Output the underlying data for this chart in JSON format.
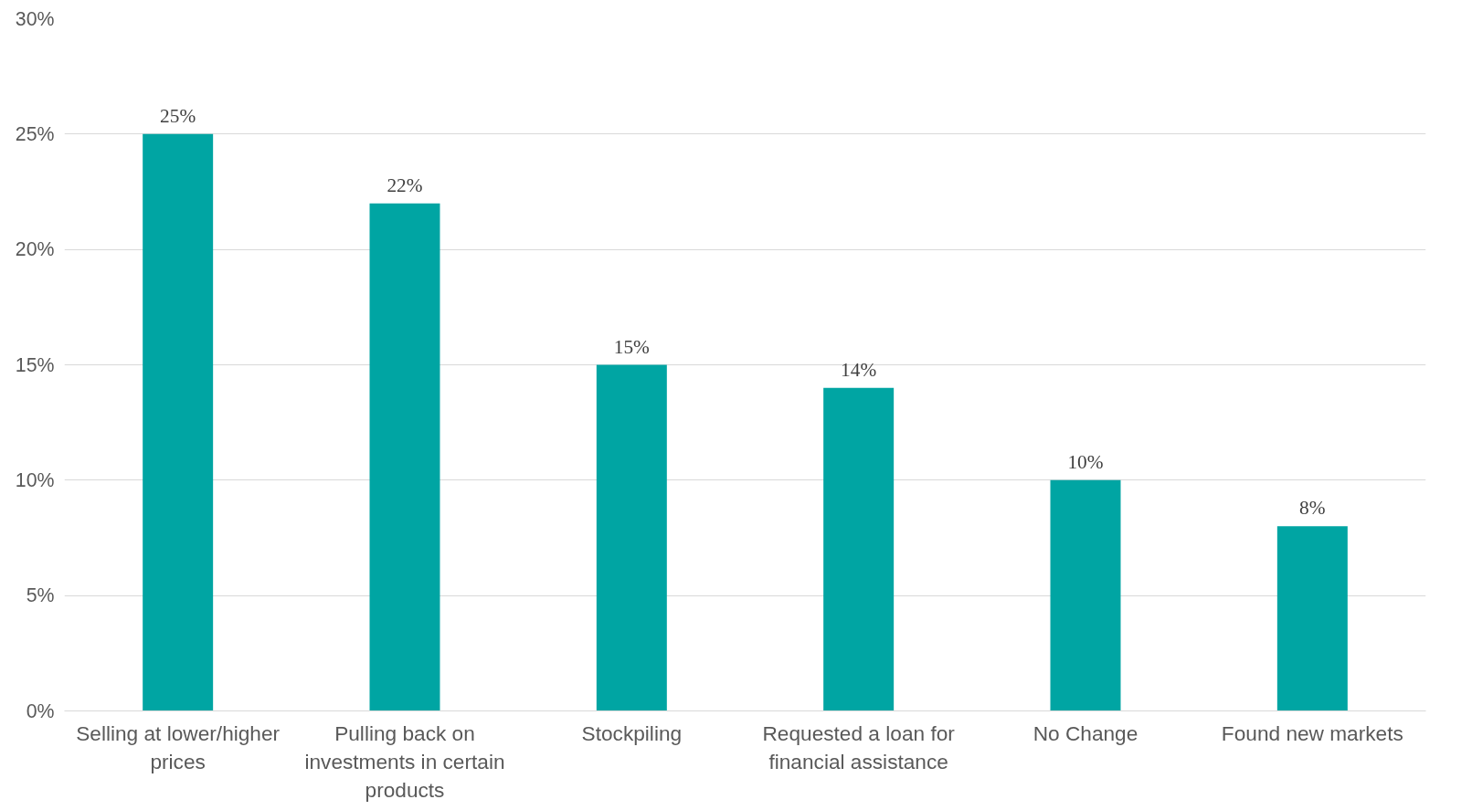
{
  "chart_data": {
    "type": "bar",
    "categories": [
      "Selling at lower/higher prices",
      "Pulling back on investments in certain products",
      "Stockpiling",
      "Requested a loan for financial assistance",
      "No Change",
      "Found new markets"
    ],
    "values": [
      25,
      22,
      15,
      14,
      10,
      8
    ],
    "color": "#00a5a3",
    "ylim": [
      0,
      30
    ],
    "yticks": [
      {
        "value": 0,
        "label": "0%"
      },
      {
        "value": 5,
        "label": "5%"
      },
      {
        "value": 10,
        "label": "10%"
      },
      {
        "value": 15,
        "label": "15%"
      },
      {
        "value": 20,
        "label": "20%"
      },
      {
        "value": 25,
        "label": "25%"
      },
      {
        "value": 30,
        "label": "30%"
      }
    ],
    "value_labels": [
      "25%",
      "22%",
      "15%",
      "14%",
      "10%",
      "8%"
    ],
    "grid": "y"
  }
}
